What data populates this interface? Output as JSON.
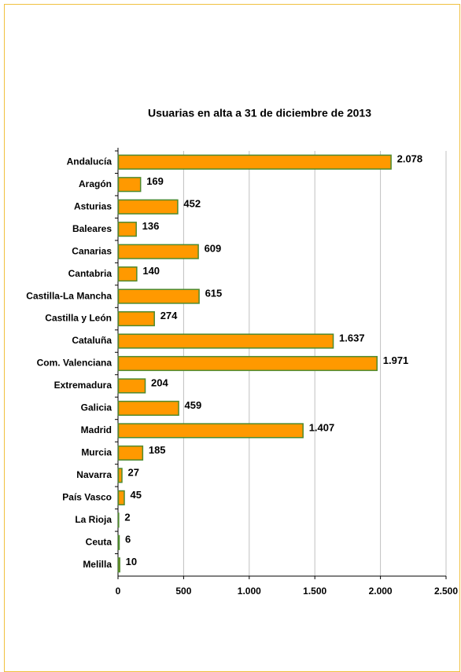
{
  "chart_data": {
    "type": "bar",
    "orientation": "horizontal",
    "title": "Usuarias en alta a 31 de diciembre de 2013",
    "categories": [
      "Andalucía",
      "Aragón",
      "Asturias",
      "Baleares",
      "Canarias",
      "Cantabria",
      "Castilla-La Mancha",
      "Castilla y León",
      "Cataluña",
      "Com. Valenciana",
      "Extremadura",
      "Galicia",
      "Madrid",
      "Murcia",
      "Navarra",
      "País Vasco",
      "La Rioja",
      "Ceuta",
      "Melilla"
    ],
    "values": [
      2078,
      169,
      452,
      136,
      609,
      140,
      615,
      274,
      1637,
      1971,
      204,
      459,
      1407,
      185,
      27,
      45,
      2,
      6,
      10
    ],
    "value_labels": [
      "2.078",
      "169",
      "452",
      "136",
      "609",
      "140",
      "615",
      "274",
      "1.637",
      "1.971",
      "204",
      "459",
      "1.407",
      "185",
      "27",
      "45",
      "2",
      "6",
      "10"
    ],
    "color": "#ff9900",
    "edge_color": "#4e8a2e",
    "xlim": [
      0,
      2500
    ],
    "xticks": [
      0,
      500,
      {
        "value": 1000,
        "label": "1.000"
      },
      {
        "value": 1500,
        "label": "1.500"
      },
      {
        "value": 2000,
        "label": "2.000"
      },
      {
        "value": 2500,
        "label": "2.500"
      }
    ],
    "grid": true
  }
}
